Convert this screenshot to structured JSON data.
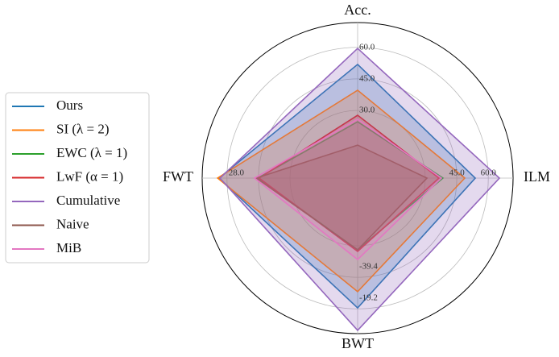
{
  "chart_data": {
    "type": "radar",
    "axes": [
      {
        "name": "Acc.",
        "lim": [
          -2.2,
          71.8
        ],
        "ticks": [
          {
            "value": 30,
            "label": "30.0"
          },
          {
            "value": 45,
            "label": "45.0"
          },
          {
            "value": 60,
            "label": "60.0"
          }
        ]
      },
      {
        "name": "ILM",
        "lim": [
          -2.2,
          71.8
        ],
        "ticks": [
          {
            "value": 45,
            "label": "45.0"
          },
          {
            "value": 60,
            "label": "60.0"
          }
        ]
      },
      {
        "name": "BWT",
        "lim": [
          -102.9,
          -3.2
        ],
        "ticks": [
          -39.4,
          -19.2
        ]
      },
      {
        "name": "FWT",
        "lim": [
          0,
          33.3
        ],
        "ticks": [
          {
            "value": 28,
            "label": "28.0"
          }
        ]
      }
    ],
    "series": [
      {
        "name": "Ours",
        "color": "#1f77b4",
        "values": [
          51.9,
          53.8,
          -19.7,
          29.7
        ]
      },
      {
        "name": "SI (λ = 2)",
        "color": "#ff7f0e",
        "values": [
          39.6,
          48.8,
          -30.1,
          30.0
        ]
      },
      {
        "name": "EWC (λ = 1)",
        "color": "#2ca02c",
        "values": [
          24.6,
          38.4,
          -56.9,
          21.4
        ]
      },
      {
        "name": "LwF (α = 1)",
        "color": "#d62728",
        "values": [
          27.7,
          36.5,
          -55.9,
          21.1
        ]
      },
      {
        "name": "Cumulative",
        "color": "#9467bd",
        "values": [
          59.5,
          65.3,
          -5.3,
          29.5
        ]
      },
      {
        "name": "Naive",
        "color": "#8c564b",
        "values": [
          13.5,
          30.8,
          -56.9,
          21.7
        ]
      },
      {
        "name": "MiB",
        "color": "#e377c2",
        "values": [
          25.8,
          37.7,
          -50.7,
          22.1
        ]
      }
    ]
  }
}
